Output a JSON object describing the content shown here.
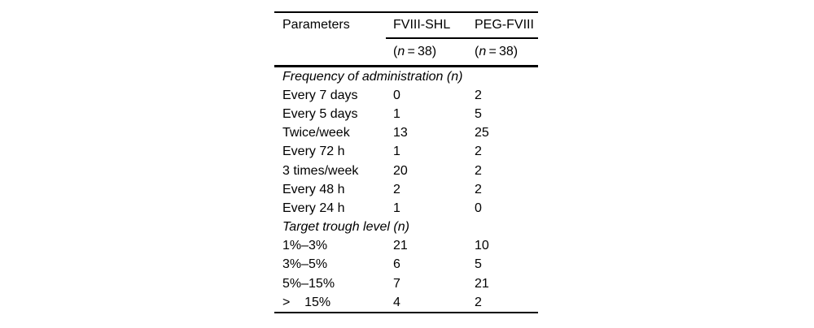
{
  "page": {
    "background_color": "#ffffff",
    "ink_color": "#000000"
  },
  "table": {
    "header": {
      "col1_label": "Parameters",
      "col2_label": "FVIII-SHL",
      "col3_label": "PEG-FVIII",
      "col2_sub": {
        "open": "(",
        "var": "n",
        "rest": " = 38)"
      },
      "col3_sub": {
        "open": "(",
        "var": "n",
        "rest": " = 38)"
      }
    },
    "rows": [
      {
        "kind": "section",
        "label": "Frequency of administration (n)"
      },
      {
        "kind": "data",
        "label": "Every 7 days",
        "c2": "0",
        "c3": "2"
      },
      {
        "kind": "data",
        "label": "Every 5 days",
        "c2": "1",
        "c3": "5"
      },
      {
        "kind": "data",
        "label": "Twice/week",
        "c2": "13",
        "c3": "25"
      },
      {
        "kind": "data",
        "label": "Every 72 h",
        "c2": "1",
        "c3": "2"
      },
      {
        "kind": "data",
        "label": "3 times/week",
        "c2": "20",
        "c3": "2"
      },
      {
        "kind": "data",
        "label": "Every 48 h",
        "c2": "2",
        "c3": "2"
      },
      {
        "kind": "data",
        "label": "Every 24 h",
        "c2": "1",
        "c3": "0"
      },
      {
        "kind": "section",
        "label": "Target trough level (n)"
      },
      {
        "kind": "data",
        "label": "1%–3%",
        "c2": "21",
        "c3": "10"
      },
      {
        "kind": "data",
        "label": "3%–5%",
        "c2": "6",
        "c3": "5"
      },
      {
        "kind": "data",
        "label": "5%–15%",
        "c2": "7",
        "c3": "21"
      },
      {
        "kind": "data",
        "label": ">    15%",
        "c2": "4",
        "c3": "2"
      }
    ]
  }
}
